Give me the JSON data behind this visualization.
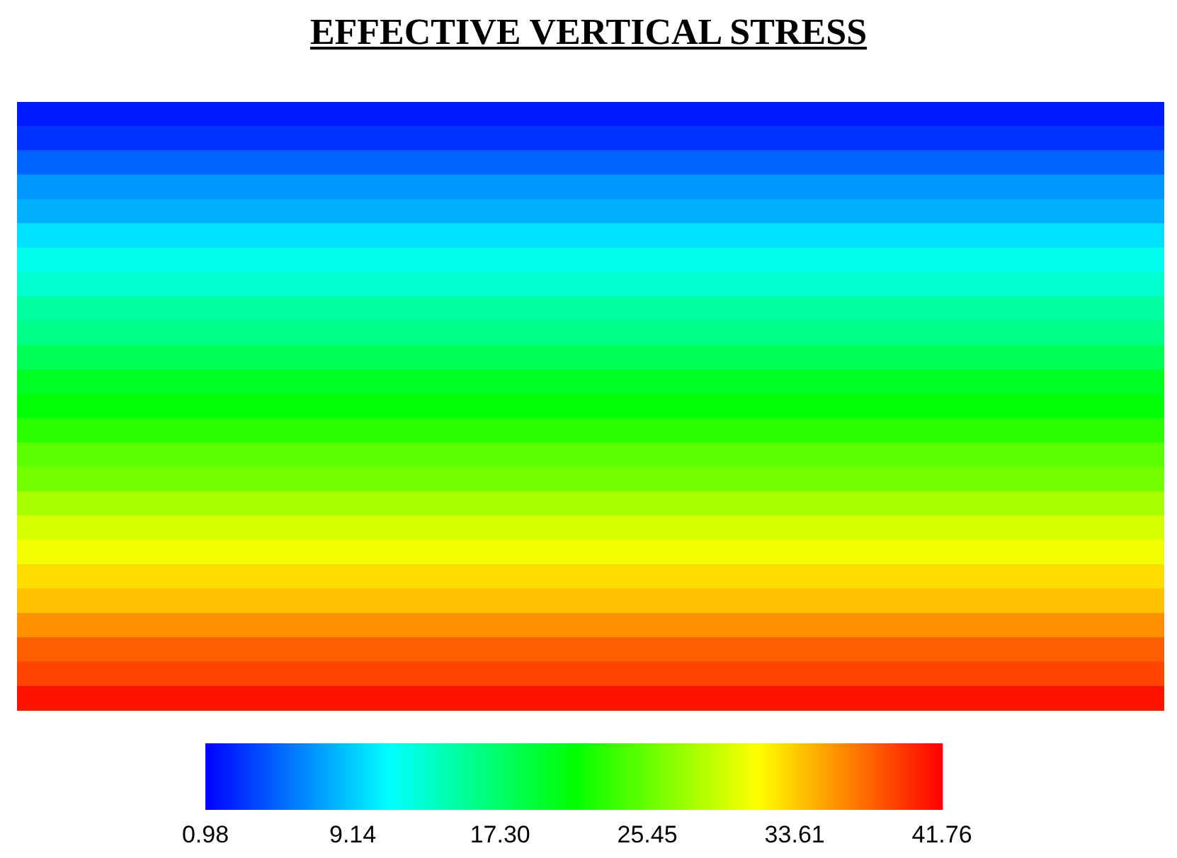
{
  "chart_data": {
    "type": "heatmap",
    "title": "EFFECTIVE VERTICAL STRESS",
    "categories": [
      null
    ],
    "y_categories": [
      null,
      null,
      null,
      null,
      null,
      null,
      null,
      null,
      null,
      null,
      null,
      null,
      null,
      null,
      null,
      null,
      null,
      null,
      null,
      null,
      null,
      null,
      null,
      null,
      null
    ],
    "cells": [
      [
        2
      ],
      [
        3
      ],
      [
        5
      ],
      [
        7
      ],
      [
        8
      ],
      [
        10
      ],
      [
        12
      ],
      [
        13
      ],
      [
        15
      ],
      [
        16
      ],
      [
        18
      ],
      [
        20
      ],
      [
        21
      ],
      [
        23
      ],
      [
        25
      ],
      [
        26
      ],
      [
        28
      ],
      [
        30
      ],
      [
        31
      ],
      [
        33
      ],
      [
        34
      ],
      [
        36
      ],
      [
        38
      ],
      [
        39
      ],
      [
        41
      ]
    ],
    "clim": [
      0.98,
      41.76
    ],
    "cticks": [
      0.98,
      9.14,
      {
        "value": 17.3,
        "label": "17.30"
      },
      25.45,
      33.61,
      41.76
    ]
  }
}
